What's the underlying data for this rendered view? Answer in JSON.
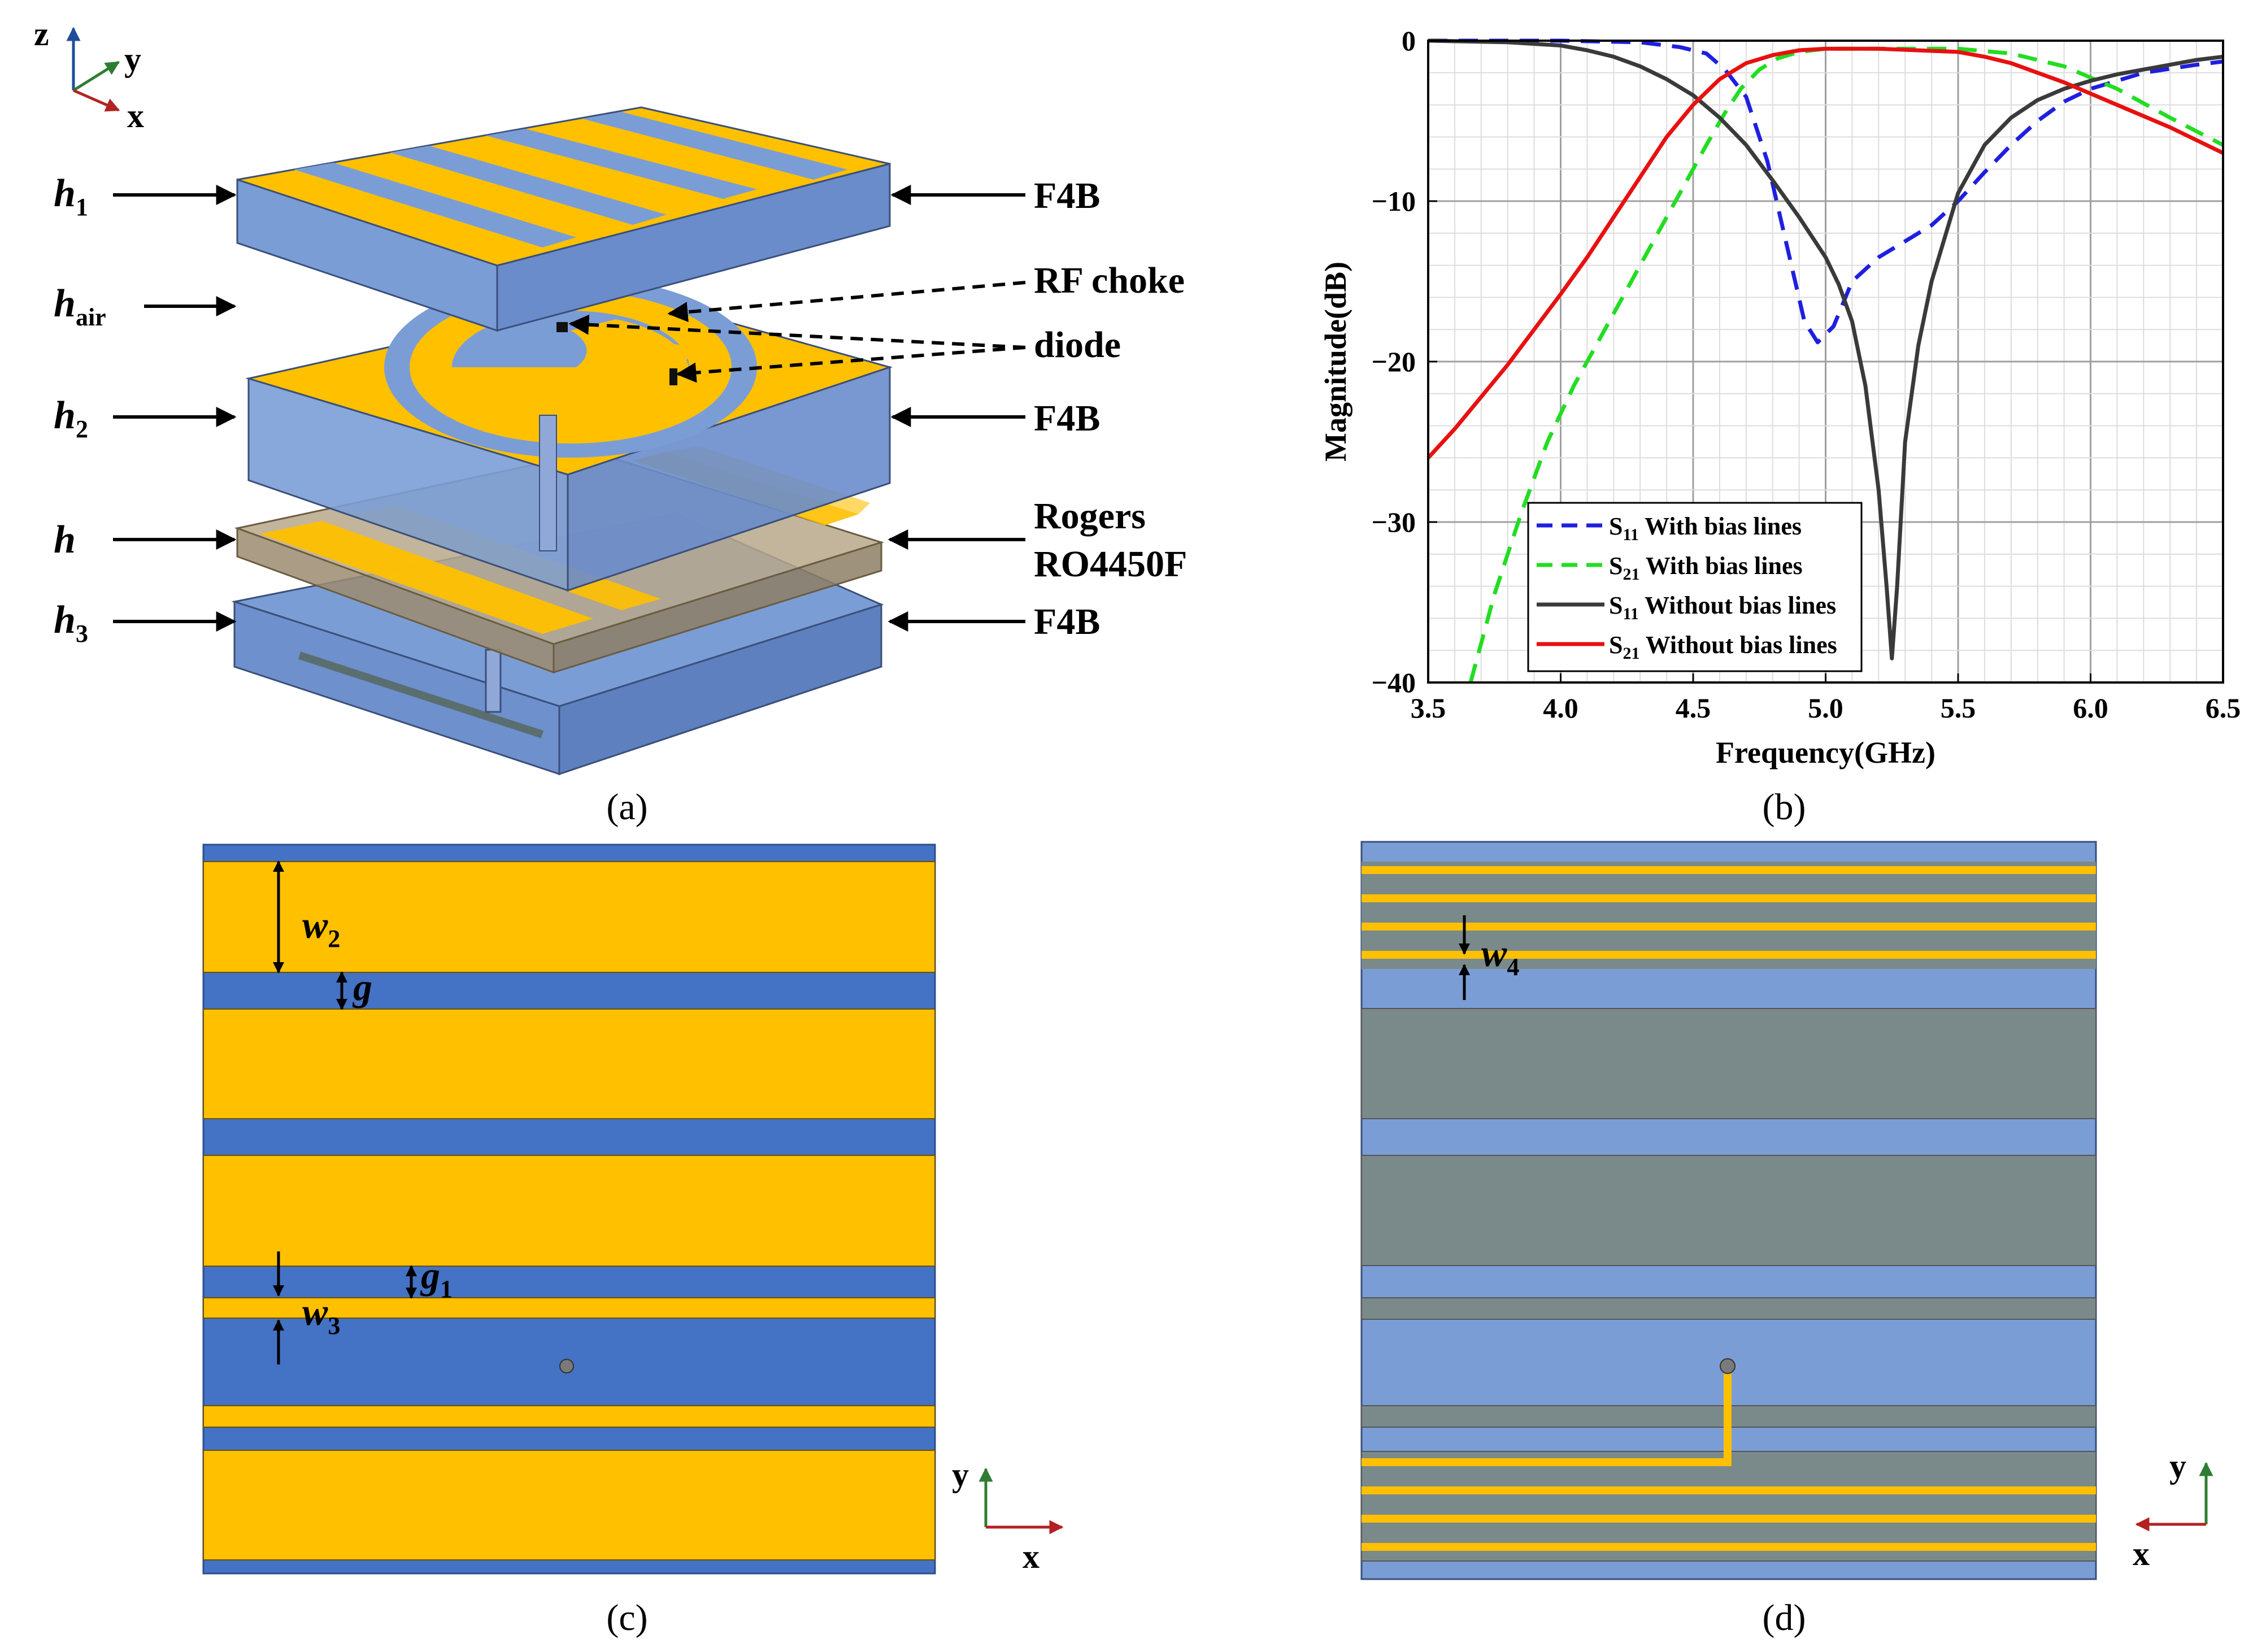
{
  "colors": {
    "gold": "#FFC000",
    "blue_dark": "#4472C4",
    "blue_light": "#7B9DD6",
    "gray": "#7A8A8A",
    "tan": "#B9A88A",
    "s11_bias": "#1F1FE0",
    "s21_bias": "#22DD22",
    "s11_nobias": "#3A3A3A",
    "s21_nobias": "#E81010"
  },
  "panel_a": {
    "caption": "(a)",
    "axes": {
      "z": "z",
      "y": "y",
      "x": "x"
    },
    "left_labels": {
      "h1": "h",
      "h1_sub": "1",
      "hair": "h",
      "hair_sub": "air",
      "h2": "h",
      "h2_sub": "2",
      "h": "h",
      "h3": "h",
      "h3_sub": "3"
    },
    "right_labels": {
      "f4b_top": "F4B",
      "rf_choke": "RF choke",
      "diode": "diode",
      "f4b_mid": "F4B",
      "rogers_1": "Rogers",
      "rogers_2": "RO4450F",
      "f4b_bot": "F4B"
    }
  },
  "panel_b": {
    "caption": "(b)",
    "legend": [
      {
        "main": "S",
        "sub": "11",
        "rest": " With bias lines"
      },
      {
        "main": "S",
        "sub": "21",
        "rest": " With bias lines"
      },
      {
        "main": "S",
        "sub": "11",
        "rest": " Without bias lines"
      },
      {
        "main": "S",
        "sub": "21",
        "rest": " Without bias lines"
      }
    ]
  },
  "panel_c": {
    "caption": "(c)",
    "dims": {
      "w2": "w",
      "w2_sub": "2",
      "g": "g",
      "g1": "g",
      "g1_sub": "1",
      "w3": "w",
      "w3_sub": "3"
    },
    "axes": {
      "y": "y",
      "x": "x"
    }
  },
  "panel_d": {
    "caption": "(d)",
    "dims": {
      "w4": "w",
      "w4_sub": "4"
    },
    "axes": {
      "y": "y",
      "x": "x"
    }
  },
  "chart_data": {
    "type": "line",
    "title": "",
    "xlabel": "Frequency(GHz)",
    "ylabel": "Magnitude(dB)",
    "xlim": [
      3.5,
      6.5
    ],
    "ylim": [
      -40,
      0
    ],
    "xticks": [
      "3.5",
      "4.0",
      "4.5",
      "5.0",
      "5.5",
      "6.0",
      "6.5"
    ],
    "yticks": [
      "0",
      "−10",
      "−20",
      "−30",
      "−40"
    ],
    "grid": true,
    "legend_position": "bottom-left",
    "series": [
      {
        "name": "S11 With bias lines",
        "style": "dashed",
        "color": "#1F1FE0",
        "x": [
          3.5,
          4.0,
          4.3,
          4.45,
          4.55,
          4.62,
          4.7,
          4.78,
          4.85,
          4.92,
          4.97,
          5.03,
          5.1,
          5.2,
          5.3,
          5.4,
          5.5,
          5.6,
          5.7,
          5.8,
          5.9,
          6.0,
          6.2,
          6.4,
          6.5
        ],
        "y": [
          0,
          0,
          -0.1,
          -0.4,
          -0.8,
          -1.8,
          -3.5,
          -7.5,
          -12.5,
          -17.5,
          -18.8,
          -17.8,
          -15,
          -13.5,
          -12.5,
          -11.5,
          -10,
          -8.2,
          -6.5,
          -5,
          -3.8,
          -3,
          -2,
          -1.5,
          -1.3
        ]
      },
      {
        "name": "S21 With bias lines",
        "style": "dashed",
        "color": "#22DD22",
        "x": [
          3.66,
          3.75,
          3.85,
          3.95,
          4.05,
          4.15,
          4.25,
          4.35,
          4.45,
          4.55,
          4.62,
          4.68,
          4.75,
          4.82,
          4.9,
          5.0,
          5.2,
          5.5,
          5.7,
          5.9,
          6.1,
          6.3,
          6.5
        ],
        "y": [
          -40,
          -34.5,
          -29.5,
          -25,
          -21.5,
          -18.5,
          -15.5,
          -12.5,
          -9.5,
          -6.5,
          -4.5,
          -3,
          -1.8,
          -1.1,
          -0.7,
          -0.5,
          -0.5,
          -0.5,
          -0.8,
          -1.6,
          -3,
          -4.8,
          -6.5
        ]
      },
      {
        "name": "S11 Without bias lines",
        "style": "solid",
        "color": "#3A3A3A",
        "x": [
          3.5,
          3.8,
          4.0,
          4.1,
          4.2,
          4.3,
          4.4,
          4.5,
          4.6,
          4.7,
          4.8,
          4.9,
          5.0,
          5.05,
          5.1,
          5.15,
          5.2,
          5.23,
          5.25,
          5.27,
          5.3,
          5.35,
          5.4,
          5.5,
          5.6,
          5.7,
          5.8,
          5.9,
          6.0,
          6.1,
          6.2,
          6.3,
          6.4,
          6.5
        ],
        "y": [
          0,
          -0.1,
          -0.3,
          -0.6,
          -1.0,
          -1.6,
          -2.4,
          -3.4,
          -4.8,
          -6.5,
          -8.7,
          -11,
          -13.5,
          -15.2,
          -17.5,
          -21.5,
          -28,
          -34,
          -38.5,
          -34,
          -25,
          -19,
          -15,
          -9.5,
          -6.5,
          -4.8,
          -3.7,
          -3,
          -2.5,
          -2.1,
          -1.8,
          -1.5,
          -1.2,
          -1.0
        ]
      },
      {
        "name": "S21 Without bias lines",
        "style": "solid",
        "color": "#E81010",
        "x": [
          3.5,
          3.6,
          3.7,
          3.8,
          3.9,
          4.0,
          4.1,
          4.2,
          4.3,
          4.4,
          4.5,
          4.55,
          4.6,
          4.7,
          4.8,
          4.9,
          5.0,
          5.2,
          5.5,
          5.6,
          5.7,
          5.8,
          5.9,
          6.0,
          6.1,
          6.2,
          6.3,
          6.4,
          6.5
        ],
        "y": [
          -26,
          -24.2,
          -22.2,
          -20.2,
          -18,
          -15.8,
          -13.5,
          -11,
          -8.5,
          -6,
          -4,
          -3.2,
          -2.4,
          -1.4,
          -0.9,
          -0.6,
          -0.5,
          -0.5,
          -0.7,
          -1,
          -1.4,
          -2,
          -2.6,
          -3.3,
          -4,
          -4.7,
          -5.4,
          -6.2,
          -7
        ]
      }
    ]
  }
}
